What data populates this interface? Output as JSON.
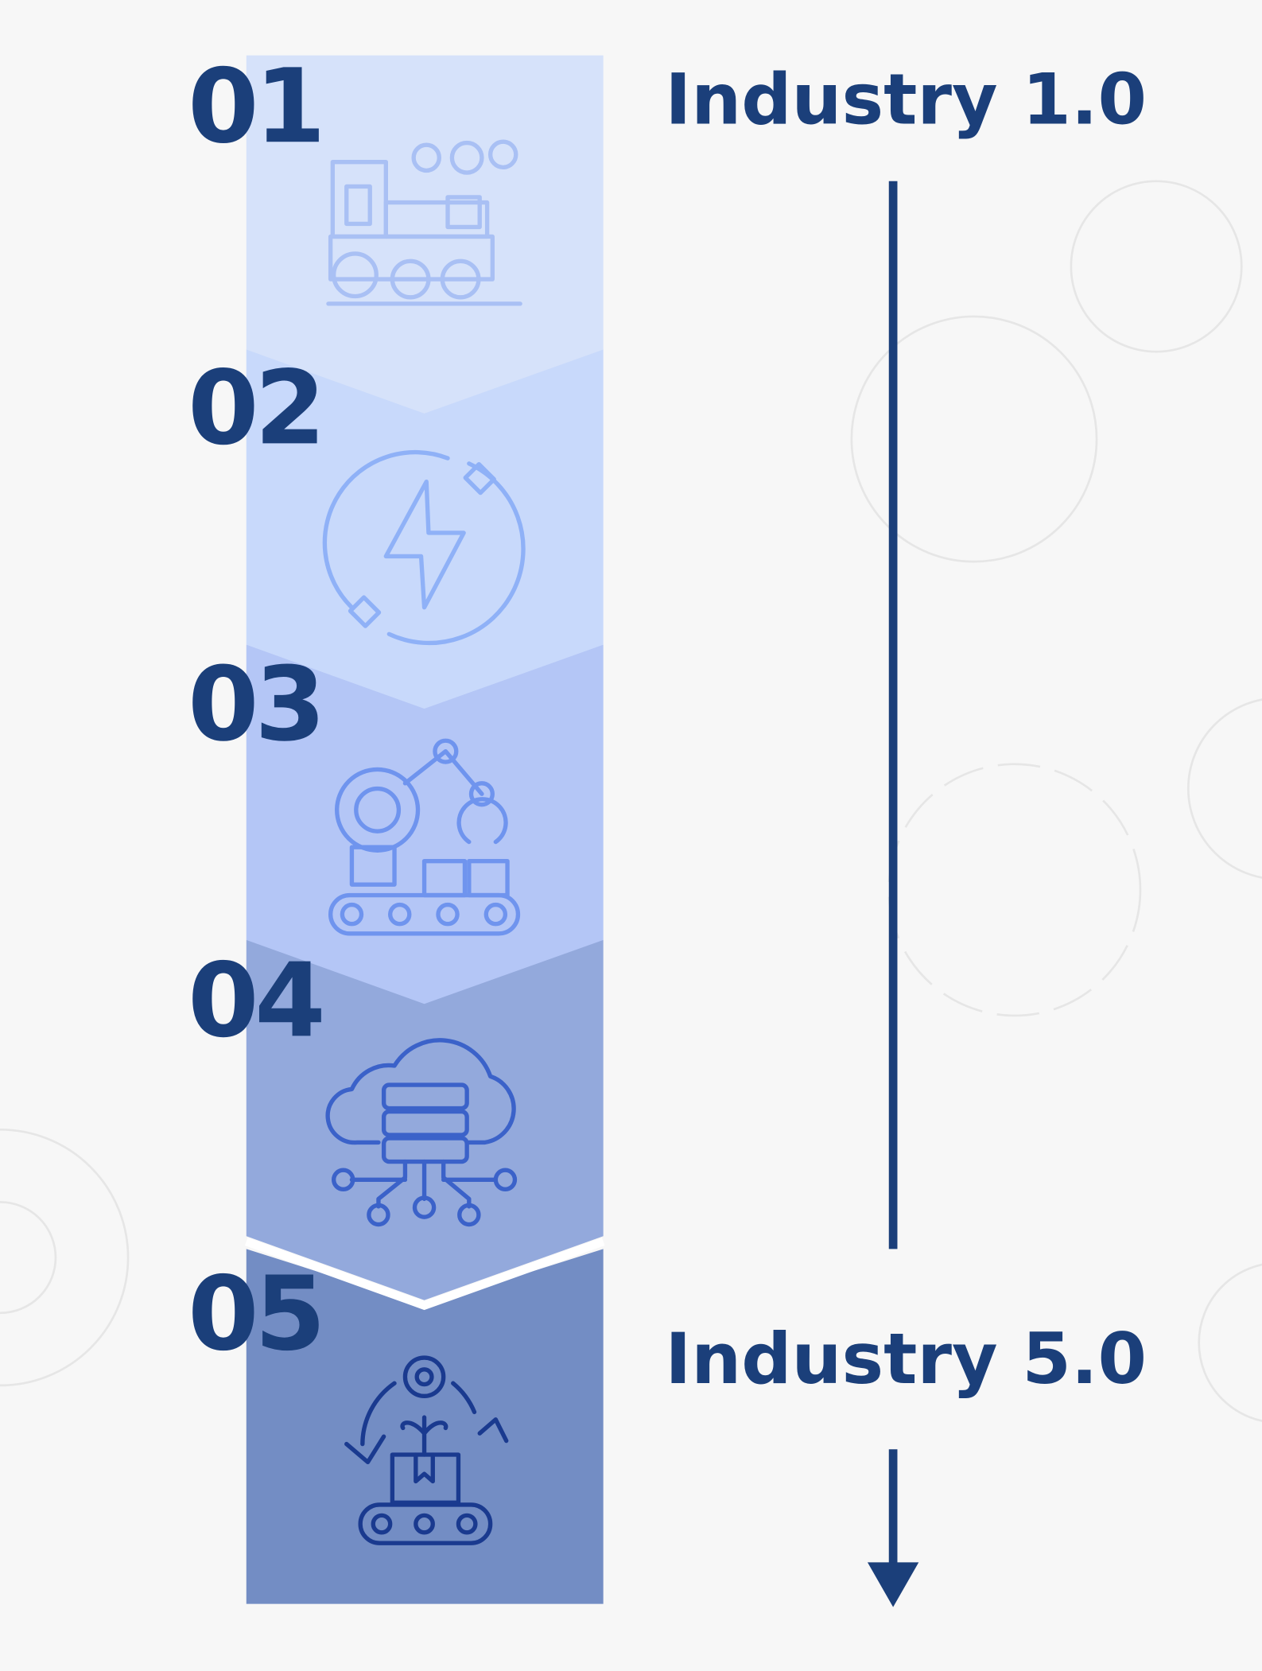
{
  "steps": [
    {
      "number": "01"
    },
    {
      "number": "02"
    },
    {
      "number": "03"
    },
    {
      "number": "04"
    },
    {
      "number": "05"
    }
  ],
  "start_label": "Industry 1.0",
  "end_label": "Industry 5.0"
}
